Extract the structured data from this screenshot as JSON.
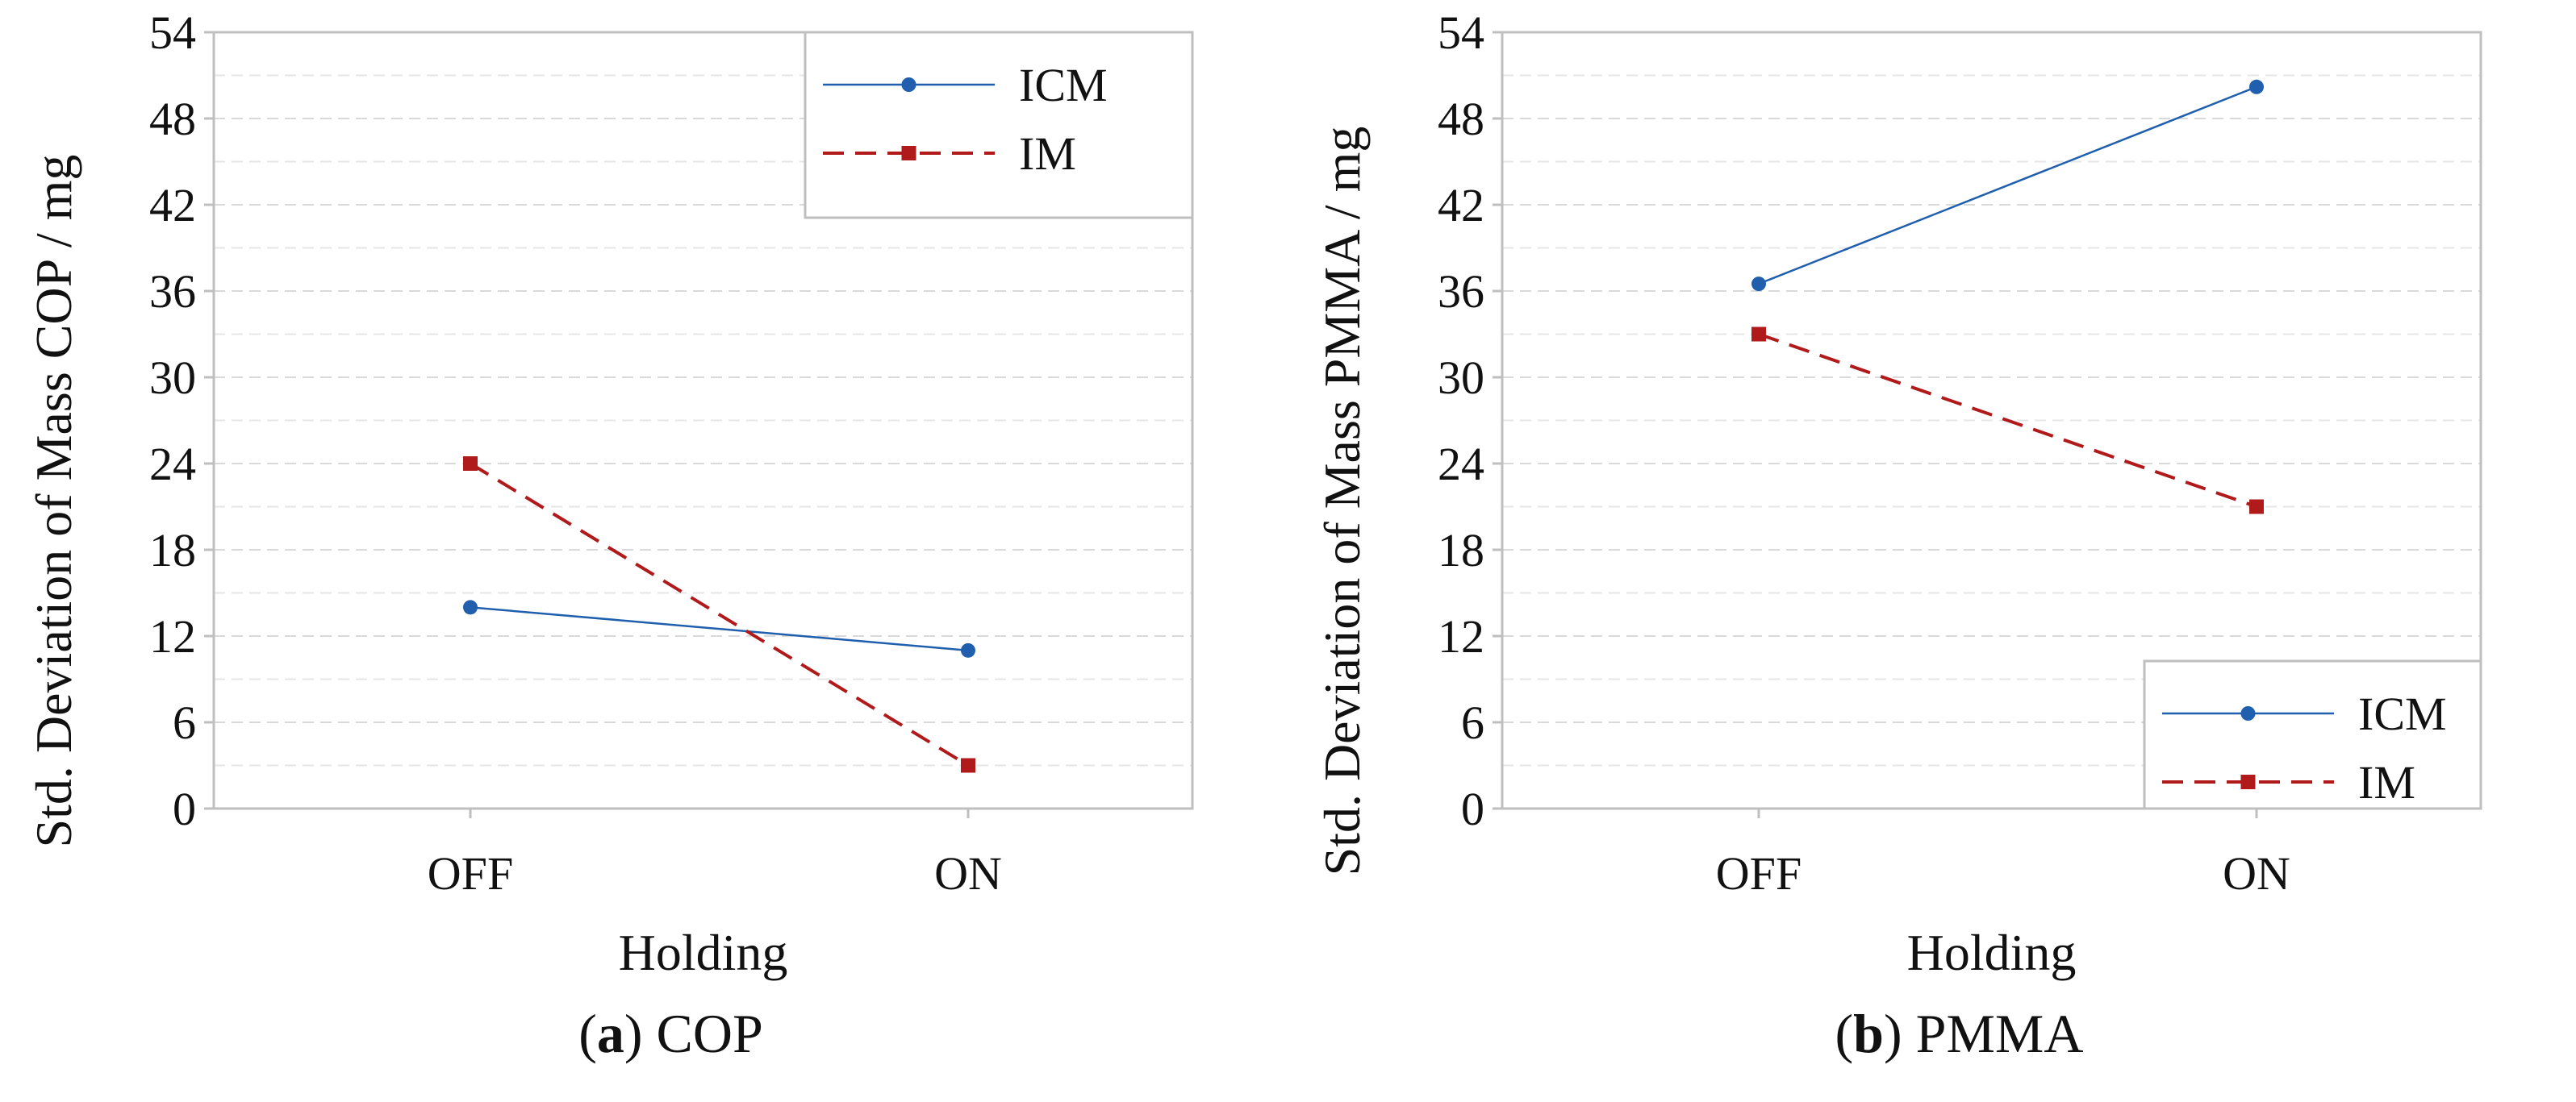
{
  "colors": {
    "icm": "#1f5fae",
    "im": "#b11a1a",
    "grid_major": "#d9d9d9",
    "grid_minor": "#e6e6e6",
    "frame": "#bfbfbf"
  },
  "chart_data": [
    {
      "id": "a",
      "type": "line",
      "title": "COP",
      "caption": {
        "open": "(",
        "letter": "a",
        "close": ")",
        "text": "COP"
      },
      "categories": [
        "OFF",
        "ON"
      ],
      "xlabel": "Holding",
      "ylabel": "Std. Deviation of Mass COP / mg",
      "ylim": [
        0,
        54
      ],
      "yticks": [
        0,
        6,
        12,
        18,
        24,
        30,
        36,
        42,
        48,
        54
      ],
      "grid": true,
      "legend_position": "top-right",
      "series": [
        {
          "name": "ICM",
          "values": [
            14,
            11
          ],
          "style": "solid",
          "marker": "circle"
        },
        {
          "name": "IM",
          "values": [
            24,
            3
          ],
          "style": "dashed",
          "marker": "square"
        }
      ]
    },
    {
      "id": "b",
      "type": "line",
      "title": "PMMA",
      "caption": {
        "open": "(",
        "letter": "b",
        "close": ")",
        "text": "PMMA"
      },
      "categories": [
        "OFF",
        "ON"
      ],
      "xlabel": "Holding",
      "ylabel": "Std. Deviation of Mass PMMA / mg",
      "ylim": [
        0,
        54
      ],
      "yticks": [
        0,
        6,
        12,
        18,
        24,
        30,
        36,
        42,
        48,
        54
      ],
      "grid": true,
      "legend_position": "bottom-right",
      "series": [
        {
          "name": "ICM",
          "values": [
            36.5,
            50.2
          ],
          "style": "solid",
          "marker": "circle"
        },
        {
          "name": "IM",
          "values": [
            33,
            21
          ],
          "style": "dashed",
          "marker": "square"
        }
      ]
    }
  ]
}
